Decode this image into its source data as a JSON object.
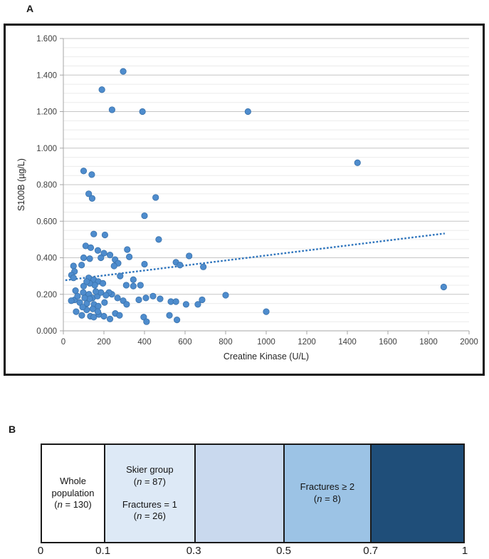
{
  "panels": {
    "a_label": "A",
    "b_label": "B"
  },
  "chart_data": [
    {
      "id": "s100b-vs-ck-scatter",
      "type": "scatter",
      "title": "",
      "xlabel": "Creatine Kinase (U/L)",
      "ylabel": "S100B (µg/L)",
      "xlim": [
        0,
        2000
      ],
      "ylim": [
        0,
        1.6
      ],
      "x_ticks": [
        0,
        200,
        400,
        600,
        800,
        1000,
        1200,
        1400,
        1600,
        1800,
        2000
      ],
      "y_ticks": [
        "0.000",
        "0.200",
        "0.400",
        "0.600",
        "0.800",
        "1.000",
        "1.200",
        "1.400",
        "1.600"
      ],
      "y_minor_step": 0.05,
      "grid": true,
      "legend": "none",
      "marker_color": "#4e8ccd",
      "marker_stroke": "#3a72ab",
      "trendline": {
        "style": "dotted",
        "color": "#2f75bd",
        "x1": 10,
        "y1": 0.277,
        "x2": 1880,
        "y2": 0.533
      },
      "points": [
        [
          295,
          1.42
        ],
        [
          190,
          1.32
        ],
        [
          240,
          1.21
        ],
        [
          390,
          1.2
        ],
        [
          910,
          1.2
        ],
        [
          1450,
          0.92
        ],
        [
          100,
          0.875
        ],
        [
          140,
          0.855
        ],
        [
          125,
          0.75
        ],
        [
          142,
          0.725
        ],
        [
          455,
          0.73
        ],
        [
          400,
          0.63
        ],
        [
          150,
          0.53
        ],
        [
          205,
          0.525
        ],
        [
          470,
          0.5
        ],
        [
          110,
          0.465
        ],
        [
          135,
          0.455
        ],
        [
          170,
          0.44
        ],
        [
          200,
          0.425
        ],
        [
          230,
          0.415
        ],
        [
          315,
          0.445
        ],
        [
          325,
          0.405
        ],
        [
          100,
          0.4
        ],
        [
          130,
          0.395
        ],
        [
          185,
          0.4
        ],
        [
          255,
          0.39
        ],
        [
          270,
          0.37
        ],
        [
          400,
          0.365
        ],
        [
          90,
          0.36
        ],
        [
          50,
          0.355
        ],
        [
          620,
          0.41
        ],
        [
          555,
          0.375
        ],
        [
          575,
          0.36
        ],
        [
          690,
          0.35
        ],
        [
          250,
          0.355
        ],
        [
          55,
          0.325
        ],
        [
          40,
          0.305
        ],
        [
          50,
          0.29
        ],
        [
          125,
          0.29
        ],
        [
          150,
          0.28
        ],
        [
          172,
          0.27
        ],
        [
          195,
          0.26
        ],
        [
          155,
          0.25
        ],
        [
          280,
          0.3
        ],
        [
          345,
          0.28
        ],
        [
          310,
          0.25
        ],
        [
          380,
          0.25
        ],
        [
          345,
          0.245
        ],
        [
          1875,
          0.24
        ],
        [
          100,
          0.245
        ],
        [
          130,
          0.26
        ],
        [
          115,
          0.27
        ],
        [
          60,
          0.22
        ],
        [
          98,
          0.21
        ],
        [
          126,
          0.2
        ],
        [
          144,
          0.18
        ],
        [
          168,
          0.19
        ],
        [
          56,
          0.17
        ],
        [
          39,
          0.165
        ],
        [
          81,
          0.155
        ],
        [
          116,
          0.15
        ],
        [
          151,
          0.145
        ],
        [
          172,
          0.135
        ],
        [
          203,
          0.155
        ],
        [
          239,
          0.2
        ],
        [
          267,
          0.18
        ],
        [
          295,
          0.165
        ],
        [
          312,
          0.145
        ],
        [
          225,
          0.21
        ],
        [
          210,
          0.195
        ],
        [
          185,
          0.21
        ],
        [
          160,
          0.215
        ],
        [
          372,
          0.17
        ],
        [
          407,
          0.18
        ],
        [
          442,
          0.19
        ],
        [
          477,
          0.175
        ],
        [
          530,
          0.16
        ],
        [
          555,
          0.16
        ],
        [
          605,
          0.145
        ],
        [
          663,
          0.145
        ],
        [
          684,
          0.17
        ],
        [
          800,
          0.195
        ],
        [
          130,
          0.175
        ],
        [
          105,
          0.18
        ],
        [
          70,
          0.19
        ],
        [
          63,
          0.105
        ],
        [
          91,
          0.085
        ],
        [
          133,
          0.08
        ],
        [
          150,
          0.075
        ],
        [
          256,
          0.095
        ],
        [
          277,
          0.085
        ],
        [
          396,
          0.075
        ],
        [
          410,
          0.05
        ],
        [
          523,
          0.085
        ],
        [
          560,
          0.06
        ],
        [
          1000,
          0.105
        ],
        [
          175,
          0.09
        ],
        [
          200,
          0.08
        ],
        [
          230,
          0.065
        ],
        [
          115,
          0.115
        ],
        [
          145,
          0.12
        ],
        [
          95,
          0.13
        ],
        [
          170,
          0.105
        ]
      ]
    },
    {
      "id": "population-bands",
      "type": "bar",
      "orientation": "horizontal-bands",
      "axis_ticks": [
        "0",
        "0.1",
        "0.3",
        "0.5",
        "0.7",
        "1"
      ],
      "segments": [
        {
          "label_lines": [
            "Whole",
            "population",
            "(n = 130)"
          ],
          "color": "#ffffff",
          "width_frac": 0.147
        },
        {
          "label_lines": [
            "Skier group",
            "(n = 87)",
            "",
            "Fractures = 1",
            "(n = 26)"
          ],
          "color": "#dde9f6",
          "width_frac": 0.214
        },
        {
          "label_lines": [],
          "color": "#c9d9ee",
          "width_frac": 0.212
        },
        {
          "label_lines": [
            "Fractures ≥ 2",
            "(n = 8)"
          ],
          "color": "#9cc3e5",
          "width_frac": 0.205
        },
        {
          "label_lines": [],
          "color": "#1f4e79",
          "width_frac": 0.222
        }
      ]
    }
  ]
}
